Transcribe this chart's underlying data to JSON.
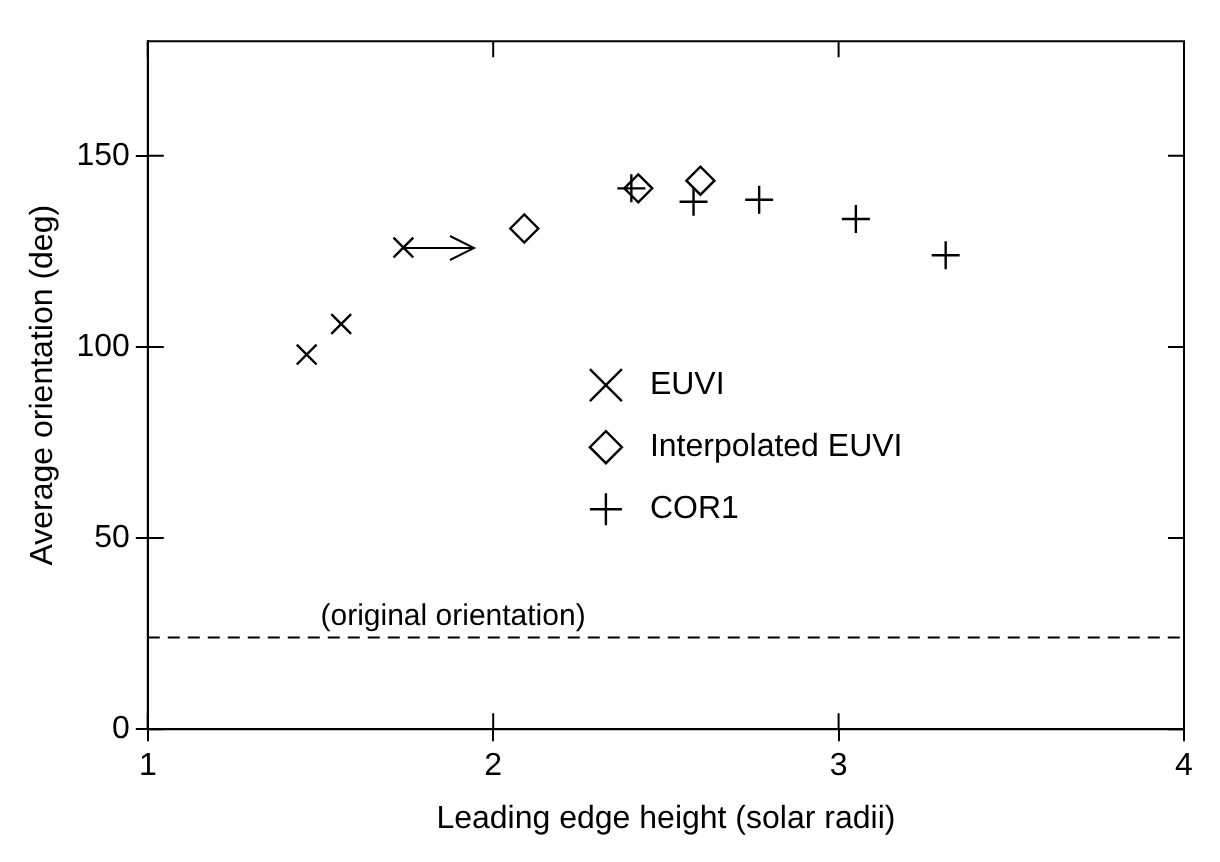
{
  "chart_data": {
    "type": "scatter",
    "xlabel": "Leading edge height (solar radii)",
    "ylabel": "Average orientation (deg)",
    "xlim": [
      1,
      4
    ],
    "xticks": [
      1,
      2,
      3,
      4
    ],
    "ylim": [
      0,
      180
    ],
    "yticks": [
      0,
      50,
      100,
      150
    ],
    "grid": false,
    "legend": "center",
    "series": [
      {
        "name": "EUVI",
        "color": "#000000",
        "marker": "cross",
        "x": [
          1.46,
          1.56,
          1.74
        ],
        "values": [
          98,
          106,
          126
        ]
      },
      {
        "name": "Interpolated EUVI",
        "color": "#000000",
        "marker": "diamond",
        "x": [
          2.09,
          2.42,
          2.6
        ],
        "values": [
          131,
          141.5,
          143.5
        ]
      },
      {
        "name": "COR1",
        "color": "#000000",
        "marker": "plus",
        "x": [
          2.4,
          2.58,
          2.77,
          3.05,
          3.31
        ],
        "values": [
          141.5,
          138,
          138.5,
          133.5,
          124
        ]
      }
    ],
    "ref_lines": [
      {
        "axis": "y",
        "value": 24,
        "label": "(original orientation)",
        "line_style": "dashed",
        "color": "#000000"
      }
    ]
  }
}
